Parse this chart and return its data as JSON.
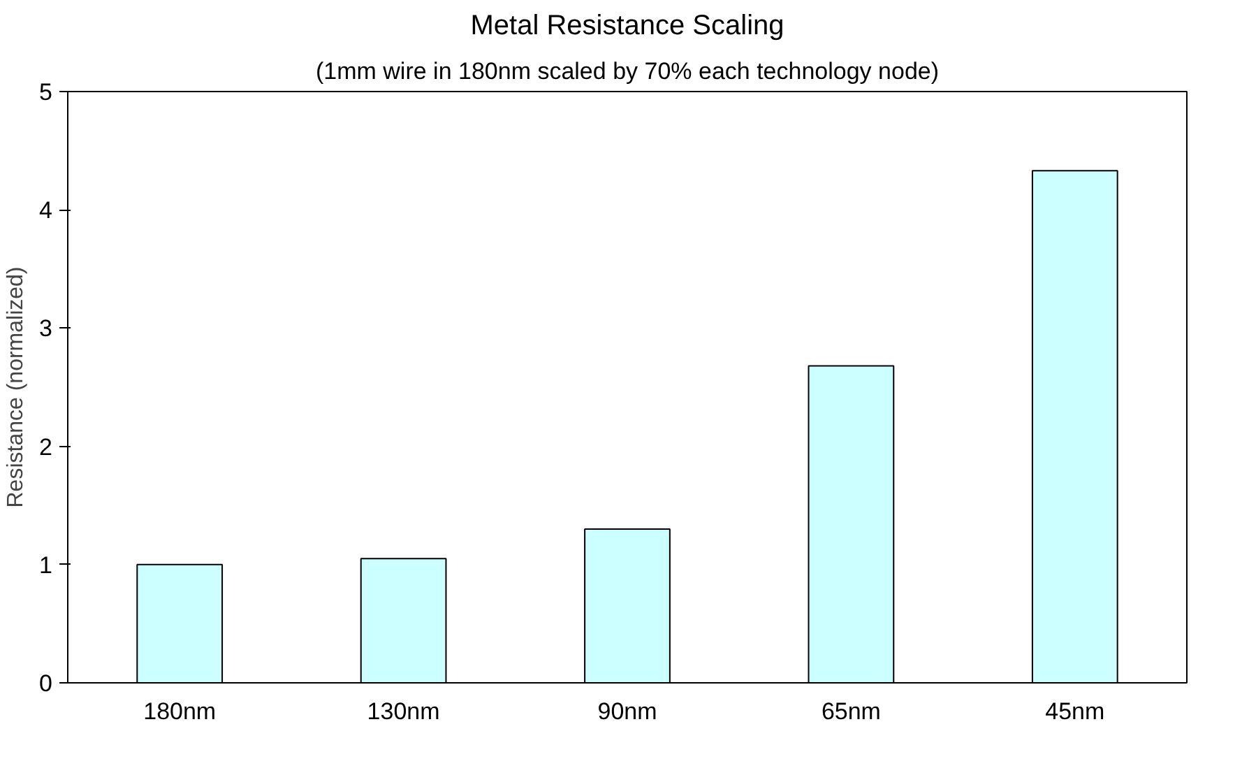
{
  "chart_data": {
    "type": "bar",
    "title": "Metal Resistance Scaling",
    "subtitle": "(1mm wire in 180nm scaled by 70% each technology node)",
    "ylabel": "Resistance (normalized)",
    "categories": [
      "180nm",
      "130nm",
      "90nm",
      "65nm",
      "45nm"
    ],
    "values": [
      1.0,
      1.05,
      1.3,
      2.68,
      4.33
    ],
    "color": "#ccffff",
    "ylim": [
      0,
      5
    ],
    "yticks": [
      0,
      1,
      2,
      3,
      4,
      5
    ],
    "grid": false
  }
}
